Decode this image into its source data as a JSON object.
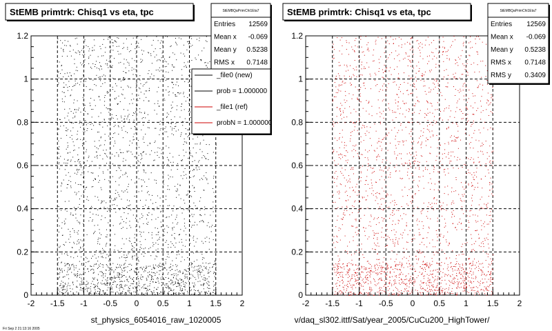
{
  "chart_data": [
    {
      "type": "scatter",
      "title": "StEMB primtrk: Chisq1 vs eta, tpc",
      "xlabel": "st_physics_6054016_raw_1020005",
      "ylabel": "",
      "xlim": [
        -2,
        2
      ],
      "ylim": [
        0,
        1.2
      ],
      "x_ticks": [
        "-2",
        "-1.5",
        "-1",
        "-0.5",
        "0",
        "0.5",
        "1",
        "1.5",
        "2"
      ],
      "y_ticks": [
        "0",
        "0.2",
        "0.4",
        "0.6",
        "0.8",
        "1",
        "1.2"
      ],
      "grid": true,
      "point_color": "#000000",
      "x_range_of_points": [
        -1.5,
        1.5
      ],
      "stats": {
        "name": "StEMBQaPrimChi1Eta7",
        "rows": [
          {
            "label": "Entries",
            "value": "12569"
          },
          {
            "label": "Mean x",
            "value": "-0.069"
          },
          {
            "label": "Mean y",
            "value": "0.5238"
          },
          {
            "label": "RMS x",
            "value": "0.7148"
          }
        ]
      },
      "legend": {
        "placement": "top-right",
        "entries": [
          {
            "label": "_file0 (new)",
            "color": "#000000"
          },
          {
            "label": "prob = 1.000000",
            "color": "#000000"
          },
          {
            "label": "_file1 (ref)",
            "color": "#cc0000"
          },
          {
            "label": "probN = 1.000000",
            "color": "#cc0000"
          }
        ]
      }
    },
    {
      "type": "scatter",
      "title": "StEMB primtrk: Chisq1 vs eta, tpc",
      "xlabel": "v/daq_sl302.ittf/Sat/year_2005/CuCu200_HighTower/",
      "ylabel": "",
      "xlim": [
        -2,
        2
      ],
      "ylim": [
        0,
        1.2
      ],
      "x_ticks": [
        "-2",
        "-1.5",
        "-1",
        "-0.5",
        "0",
        "0.5",
        "1",
        "1.5",
        "2"
      ],
      "y_ticks": [
        "0",
        "0.2",
        "0.4",
        "0.6",
        "0.8",
        "1",
        "1.2"
      ],
      "grid": true,
      "point_color": "#cc0000",
      "x_range_of_points": [
        -1.5,
        1.5
      ],
      "stats": {
        "name": "StEMBQaPrimChi1Eta7",
        "rows": [
          {
            "label": "Entries",
            "value": "12569"
          },
          {
            "label": "Mean x",
            "value": "-0.069"
          },
          {
            "label": "Mean y",
            "value": "0.5238"
          },
          {
            "label": "RMS x",
            "value": "0.7148"
          },
          {
            "label": "RMS y",
            "value": "0.3409"
          }
        ]
      }
    }
  ],
  "footer_text": "Fri Sep 2 21:13:16 2005"
}
